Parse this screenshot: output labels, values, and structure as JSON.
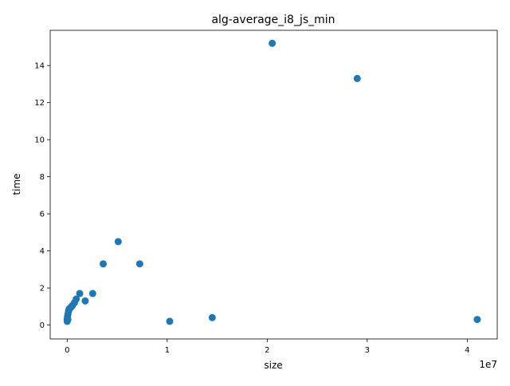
{
  "chart_data": {
    "type": "scatter",
    "title": "alg-average_i8_js_min",
    "xlabel": "size",
    "ylabel": "time",
    "x_offset_label": "1e7",
    "xlim": [
      -1700000,
      43000000
    ],
    "ylim": [
      -0.75,
      15.9
    ],
    "x_ticks": [
      0,
      10000000,
      20000000,
      30000000,
      40000000
    ],
    "x_tick_labels": [
      "0",
      "1",
      "2",
      "3",
      "4"
    ],
    "y_ticks": [
      0,
      2,
      4,
      6,
      8,
      10,
      12,
      14
    ],
    "y_tick_labels": [
      "0",
      "2",
      "4",
      "6",
      "8",
      "10",
      "12",
      "14"
    ],
    "grid": false,
    "marker_color": "#1f77b4",
    "points": [
      {
        "x": 1000,
        "y": 0.2
      },
      {
        "x": 2000,
        "y": 0.25
      },
      {
        "x": 4000,
        "y": 0.3
      },
      {
        "x": 8000,
        "y": 0.3
      },
      {
        "x": 16000,
        "y": 0.35
      },
      {
        "x": 32000,
        "y": 0.45
      },
      {
        "x": 64000,
        "y": 0.3
      },
      {
        "x": 80000,
        "y": 0.6
      },
      {
        "x": 128000,
        "y": 0.75
      },
      {
        "x": 180000,
        "y": 0.85
      },
      {
        "x": 256000,
        "y": 0.9
      },
      {
        "x": 360000,
        "y": 0.95
      },
      {
        "x": 512000,
        "y": 1.05
      },
      {
        "x": 720000,
        "y": 1.2
      },
      {
        "x": 900000,
        "y": 1.4
      },
      {
        "x": 1250000,
        "y": 1.7
      },
      {
        "x": 1800000,
        "y": 1.3
      },
      {
        "x": 2550000,
        "y": 1.7
      },
      {
        "x": 3600000,
        "y": 3.3
      },
      {
        "x": 5100000,
        "y": 4.5
      },
      {
        "x": 7250000,
        "y": 3.3
      },
      {
        "x": 10250000,
        "y": 0.2
      },
      {
        "x": 14500000,
        "y": 0.4
      },
      {
        "x": 20500000,
        "y": 15.2
      },
      {
        "x": 29000000,
        "y": 13.3
      },
      {
        "x": 41000000,
        "y": 0.3
      }
    ]
  }
}
